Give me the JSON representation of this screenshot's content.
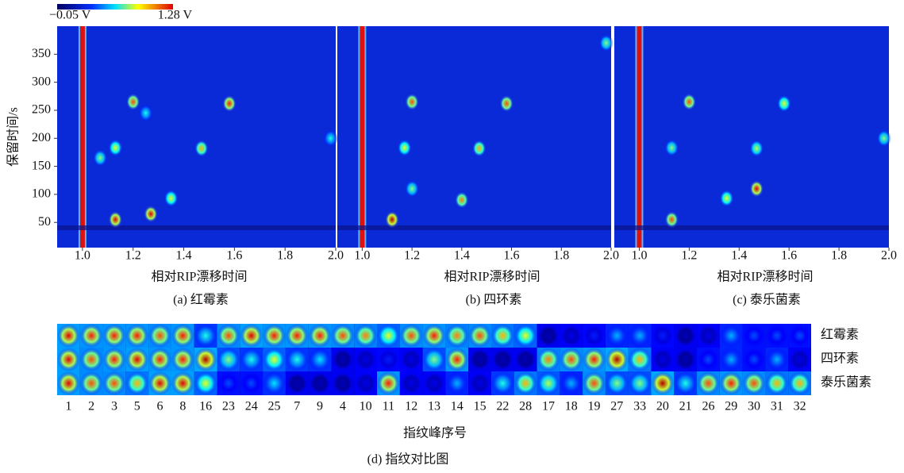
{
  "chart_data": [
    {
      "type": "heatmap",
      "title": "(a) 红霉素",
      "xlabel": "相对RIP漂移时间",
      "ylabel": "保留时间/s",
      "colorbar": {
        "clim": [
          -0.05,
          1.28
        ],
        "labels": [
          "−0.05 V",
          "1.28 V"
        ]
      },
      "xlim": [
        0.9,
        2.0
      ],
      "ylim": [
        5,
        400
      ],
      "xticks": [
        {
          "value": 1,
          "label": "1.0"
        },
        {
          "value": 1.2,
          "label": "1.2"
        },
        {
          "value": 1.4,
          "label": "1.4"
        },
        {
          "value": 1.6,
          "label": "1.6"
        },
        {
          "value": 1.8,
          "label": "1.8"
        },
        {
          "value": 2,
          "label": "2.0"
        }
      ],
      "yticks": [
        50,
        100,
        150,
        200,
        250,
        300,
        350
      ],
      "x": [
        1.2,
        1.58,
        1.47,
        1.13,
        1.35,
        1.27,
        1.13,
        1.25,
        1.07,
        1.98
      ],
      "y": [
        265,
        262,
        182,
        183,
        93,
        65,
        55,
        245,
        165,
        200
      ],
      "values": [
        0.8,
        0.85,
        0.7,
        0.6,
        0.6,
        0.9,
        0.9,
        0.4,
        0.5,
        0.4
      ]
    },
    {
      "type": "heatmap",
      "title": "(b) 四环素",
      "xlabel": "相对RIP漂移时间",
      "xlim": [
        0.9,
        2.0
      ],
      "ylim": [
        5,
        400
      ],
      "xticks": [
        {
          "value": 1,
          "label": "1.0"
        },
        {
          "value": 1.2,
          "label": "1.2"
        },
        {
          "value": 1.4,
          "label": "1.4"
        },
        {
          "value": 1.6,
          "label": "1.6"
        },
        {
          "value": 1.8,
          "label": "1.8"
        },
        {
          "value": 2,
          "label": "2.0"
        }
      ],
      "x": [
        1.2,
        1.58,
        1.47,
        1.17,
        1.4,
        1.12,
        1.2,
        1.98
      ],
      "y": [
        265,
        262,
        182,
        183,
        90,
        55,
        110,
        370
      ],
      "values": [
        0.8,
        0.8,
        0.7,
        0.6,
        0.75,
        0.95,
        0.5,
        0.5
      ]
    },
    {
      "type": "heatmap",
      "title": "(c) 泰乐菌素",
      "xlabel": "相对RIP漂移时间",
      "xlim": [
        0.9,
        2.0
      ],
      "ylim": [
        5,
        400
      ],
      "xticks": [
        {
          "value": 1,
          "label": "1.0"
        },
        {
          "value": 1.2,
          "label": "1.2"
        },
        {
          "value": 1.4,
          "label": "1.4"
        },
        {
          "value": 1.6,
          "label": "1.6"
        },
        {
          "value": 1.8,
          "label": "1.8"
        },
        {
          "value": 2,
          "label": "2.0"
        }
      ],
      "x": [
        1.2,
        1.58,
        1.47,
        1.47,
        1.13,
        1.35,
        1.13,
        1.98
      ],
      "y": [
        265,
        262,
        110,
        182,
        183,
        93,
        55,
        200
      ],
      "values": [
        0.8,
        0.6,
        0.9,
        0.55,
        0.5,
        0.6,
        0.8,
        0.5
      ]
    },
    {
      "type": "fingerprint",
      "title": "(d) 指纹对比图",
      "xlabel": "指纹峰序号",
      "categories": [
        "1",
        "2",
        "3",
        "5",
        "6",
        "8",
        "16",
        "23",
        "24",
        "25",
        "7",
        "9",
        "4",
        "10",
        "11",
        "12",
        "13",
        "14",
        "15",
        "22",
        "28",
        "17",
        "18",
        "19",
        "27",
        "33",
        "20",
        "21",
        "26",
        "29",
        "30",
        "31",
        "32"
      ],
      "series": [
        {
          "name": "红霉素",
          "values": [
            0.9,
            0.85,
            0.85,
            0.85,
            0.8,
            0.85,
            0.4,
            0.8,
            0.9,
            0.85,
            0.85,
            0.85,
            0.8,
            0.75,
            0.6,
            0.8,
            0.85,
            0.75,
            0.8,
            0.7,
            0.6,
            0.05,
            0.1,
            0.15,
            0.3,
            0.3,
            0.15,
            0.05,
            0.1,
            0.3,
            0.2,
            0.2,
            0.2
          ]
        },
        {
          "name": "四环素",
          "values": [
            0.9,
            0.8,
            0.85,
            0.9,
            0.85,
            0.85,
            0.95,
            0.5,
            0.4,
            0.6,
            0.4,
            0.35,
            0.05,
            0.1,
            0.15,
            0.1,
            0.5,
            0.85,
            0.05,
            0.05,
            0.05,
            0.75,
            0.8,
            0.85,
            0.95,
            0.7,
            0.1,
            0.05,
            0.2,
            0.3,
            0.2,
            0.3,
            0.1
          ]
        },
        {
          "name": "泰乐菌素",
          "values": [
            0.9,
            0.8,
            0.8,
            0.7,
            0.9,
            0.9,
            0.6,
            0.2,
            0.2,
            0.35,
            0.05,
            0.05,
            0.05,
            0.1,
            0.85,
            0.1,
            0.1,
            0.3,
            0.1,
            0.4,
            0.7,
            0.55,
            0.3,
            0.8,
            0.5,
            0.5,
            0.95,
            0.4,
            0.8,
            0.85,
            0.8,
            0.7,
            0.7
          ]
        }
      ]
    }
  ]
}
